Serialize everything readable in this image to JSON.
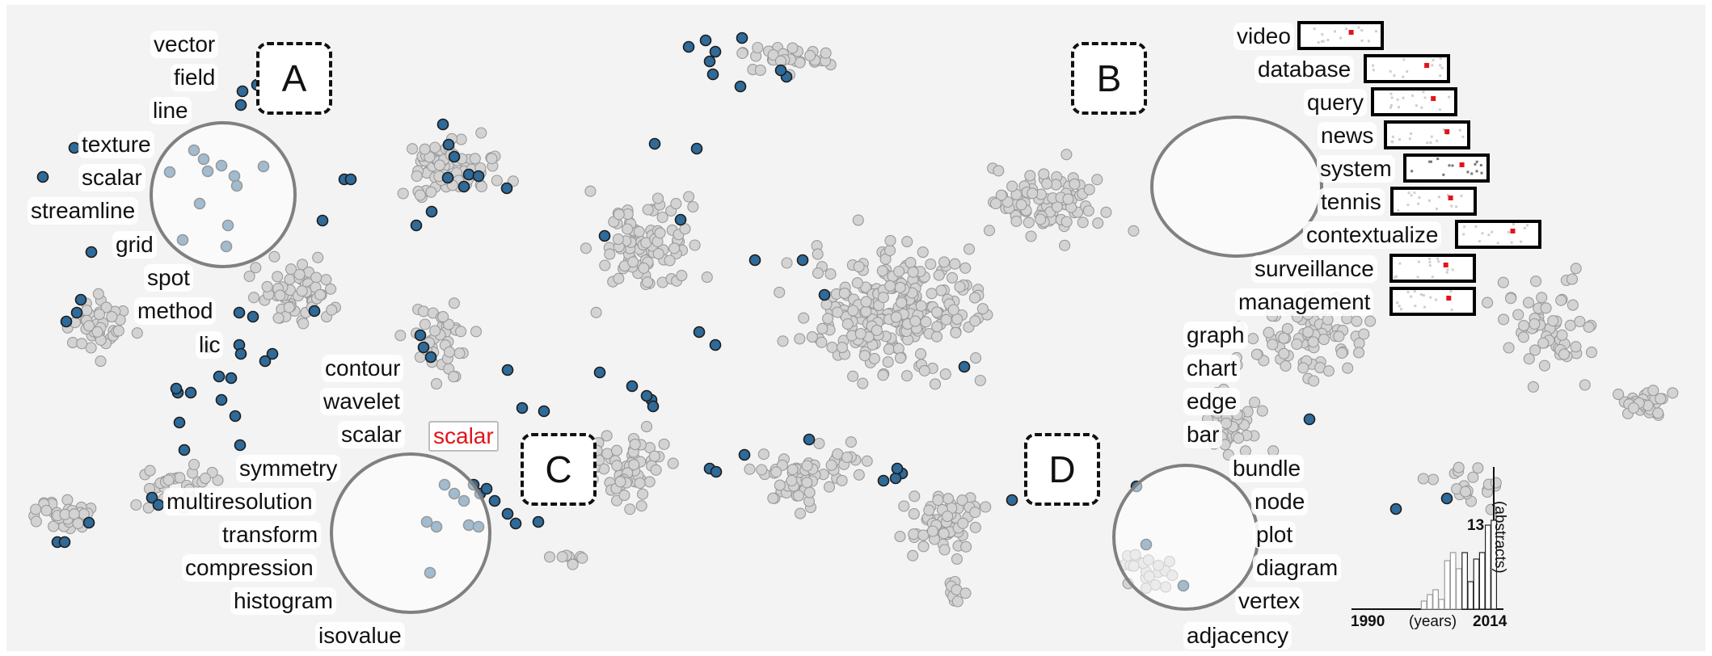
{
  "lens_a_terms": [
    "vector",
    "field",
    "line",
    "texture",
    "scalar",
    "streamline",
    "grid",
    "spot",
    "method",
    "lic"
  ],
  "lens_b_terms": [
    "video",
    "database",
    "query",
    "news",
    "system",
    "tennis",
    "contextualize",
    "surveillance",
    "management"
  ],
  "lens_c_terms": [
    "contour",
    "wavelet",
    "scalar",
    "symmetry",
    "multiresolution",
    "transform",
    "compression",
    "histogram",
    "isovalue"
  ],
  "lens_c_highlight": "scalar",
  "lens_d_terms": [
    "graph",
    "chart",
    "edge",
    "bar",
    "bundle",
    "node",
    "plot",
    "diagram",
    "vertex",
    "adjacency"
  ],
  "callouts": {
    "a": "A",
    "b": "B",
    "c": "C",
    "d": "D"
  },
  "histogram": {
    "x_start": "1990",
    "x_end": "2014",
    "x_unit": "(years)",
    "max_value": "13",
    "y_unit": "(abstracts)"
  },
  "colors": {
    "selected_point": "#2f6a98",
    "other_point": "#d3d3d3",
    "highlight_term": "#e0151b",
    "lens_border": "#808080"
  }
}
